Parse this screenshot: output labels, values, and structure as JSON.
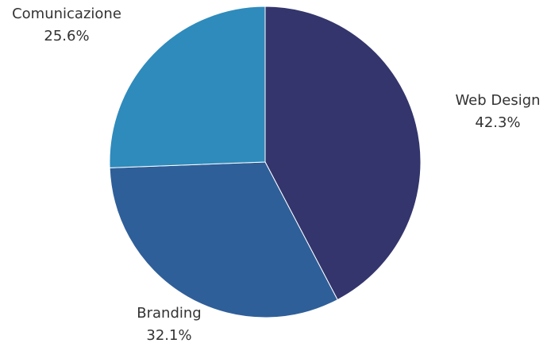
{
  "chart_data": {
    "type": "pie",
    "categories": [
      "Web Design",
      "Branding",
      "Comunicazione"
    ],
    "values": [
      42.3,
      32.1,
      25.6
    ],
    "value_labels": [
      "42.3%",
      "32.1%",
      "25.6%"
    ],
    "colors": [
      "#33356c",
      "#2f5f99",
      "#2e8bbc"
    ],
    "start": "12 o'clock",
    "direction": "clockwise",
    "legend": "none",
    "title": ""
  }
}
